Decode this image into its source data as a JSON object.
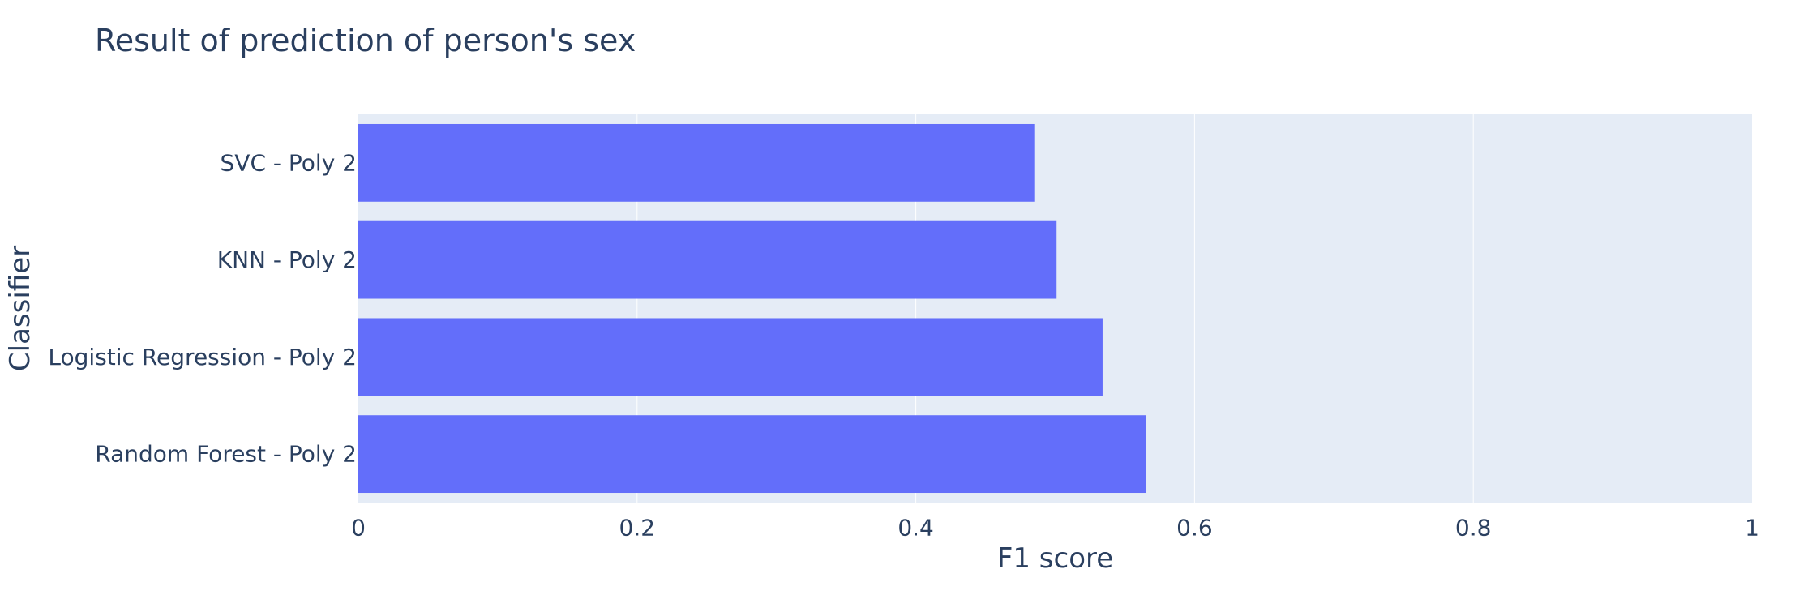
{
  "chart_data": {
    "type": "bar",
    "orientation": "horizontal",
    "title": "Result of prediction of person's sex",
    "xlabel": "F1 score",
    "ylabel": "Classifier",
    "categories": [
      "SVC - Poly 2",
      "KNN - Poly 2",
      "Logistic Regression - Poly 2",
      "Random Forest - Poly 2"
    ],
    "values": [
      0.485,
      0.501,
      0.534,
      0.565
    ],
    "xlim": [
      0,
      1
    ],
    "xticks": [
      "0",
      "0.2",
      "0.4",
      "0.6",
      "0.8",
      "1"
    ],
    "xtick_values": [
      0,
      0.2,
      0.4,
      0.6,
      0.8,
      1
    ],
    "grid": true,
    "colors": {
      "bar": "#636efa",
      "plot_bg": "#e5ecf6",
      "grid": "#ffffff",
      "text": "#2a3f5f"
    }
  }
}
